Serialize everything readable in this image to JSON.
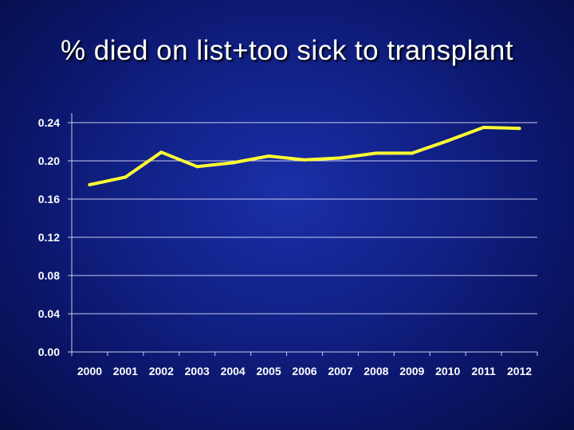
{
  "slide": {
    "title": "% died on list+too sick to transplant"
  },
  "colors": {
    "background": "#12228a",
    "line": "#ffff33",
    "grid": "#c8ccf0",
    "axis": "#c8ccf0",
    "text": "#ffffff"
  },
  "chart_data": {
    "type": "line",
    "title": "% died on list+too sick to transplant",
    "xlabel": "",
    "ylabel": "",
    "x": [
      "2000",
      "2001",
      "2002",
      "2003",
      "2004",
      "2005",
      "2006",
      "2007",
      "2008",
      "2009",
      "2010",
      "2011",
      "2012"
    ],
    "series": [
      {
        "values": [
          0.175,
          0.183,
          0.209,
          0.194,
          0.198,
          0.205,
          0.201,
          0.203,
          0.208,
          0.208,
          0.221,
          0.235,
          0.234
        ]
      }
    ],
    "ylim": [
      0,
      0.24
    ],
    "yticks": [
      "0.00",
      "0.04",
      "0.08",
      "0.12",
      "0.16",
      "0.20",
      "0.24"
    ],
    "grid": true,
    "legend": "none"
  }
}
